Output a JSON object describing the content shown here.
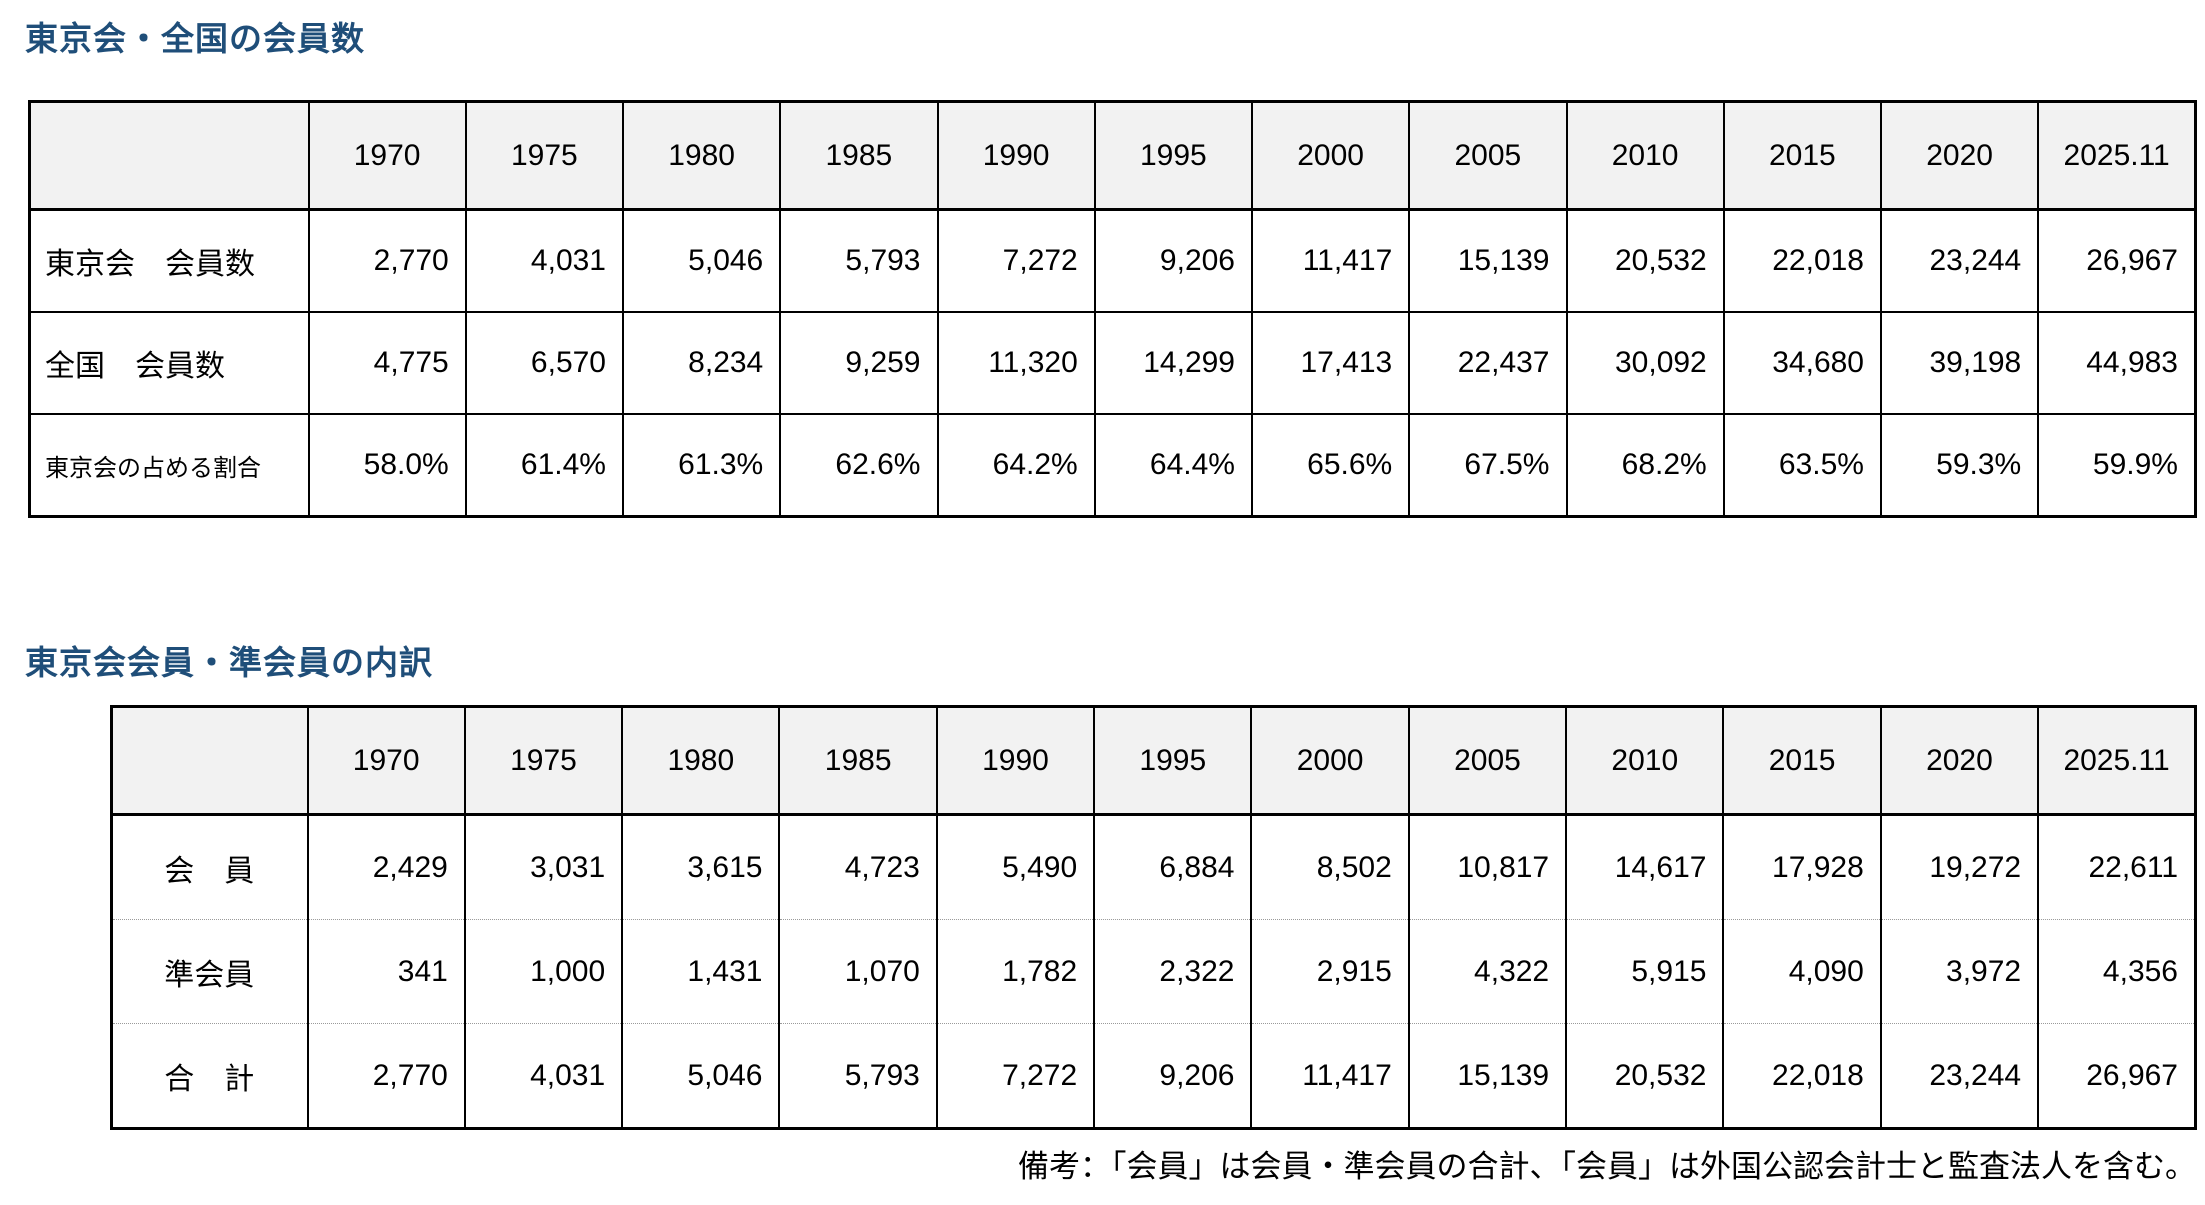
{
  "colors": {
    "title_blue": "#1f4e79",
    "header_bg": "#f2f2f2",
    "grid": "#000000",
    "dotted_separator": "#9a9a9a"
  },
  "table1": {
    "title": "東京会・全国の会員数",
    "years": [
      "1970",
      "1975",
      "1980",
      "1985",
      "1990",
      "1995",
      "2000",
      "2005",
      "2010",
      "2015",
      "2020",
      "2025.11"
    ],
    "rows": [
      {
        "label": "東京会　会員数",
        "values": [
          "2,770",
          "4,031",
          "5,046",
          "5,793",
          "7,272",
          "9,206",
          "11,417",
          "15,139",
          "20,532",
          "22,018",
          "23,244",
          "26,967"
        ]
      },
      {
        "label": "全国　会員数",
        "values": [
          "4,775",
          "6,570",
          "8,234",
          "9,259",
          "11,320",
          "14,299",
          "17,413",
          "22,437",
          "30,092",
          "34,680",
          "39,198",
          "44,983"
        ]
      },
      {
        "label": "東京会の占める割合",
        "values": [
          "58.0%",
          "61.4%",
          "61.3%",
          "62.6%",
          "64.2%",
          "64.4%",
          "65.6%",
          "67.5%",
          "68.2%",
          "63.5%",
          "59.3%",
          "59.9%"
        ]
      }
    ]
  },
  "table2": {
    "title": "東京会会員・準会員の内訳",
    "years": [
      "1970",
      "1975",
      "1980",
      "1985",
      "1990",
      "1995",
      "2000",
      "2005",
      "2010",
      "2015",
      "2020",
      "2025.11"
    ],
    "rows": [
      {
        "label": "会　員",
        "values": [
          "2,429",
          "3,031",
          "3,615",
          "4,723",
          "5,490",
          "6,884",
          "8,502",
          "10,817",
          "14,617",
          "17,928",
          "19,272",
          "22,611"
        ]
      },
      {
        "label": "準会員",
        "values": [
          "341",
          "1,000",
          "1,431",
          "1,070",
          "1,782",
          "2,322",
          "2,915",
          "4,322",
          "5,915",
          "4,090",
          "3,972",
          "4,356"
        ]
      },
      {
        "label": "合　計",
        "values": [
          "2,770",
          "4,031",
          "5,046",
          "5,793",
          "7,272",
          "9,206",
          "11,417",
          "15,139",
          "20,532",
          "22,018",
          "23,244",
          "26,967"
        ]
      }
    ]
  },
  "note": "備考：「会員」は会員・準会員の合計、「会員」は外国公認会計士と監査法人を含む。"
}
